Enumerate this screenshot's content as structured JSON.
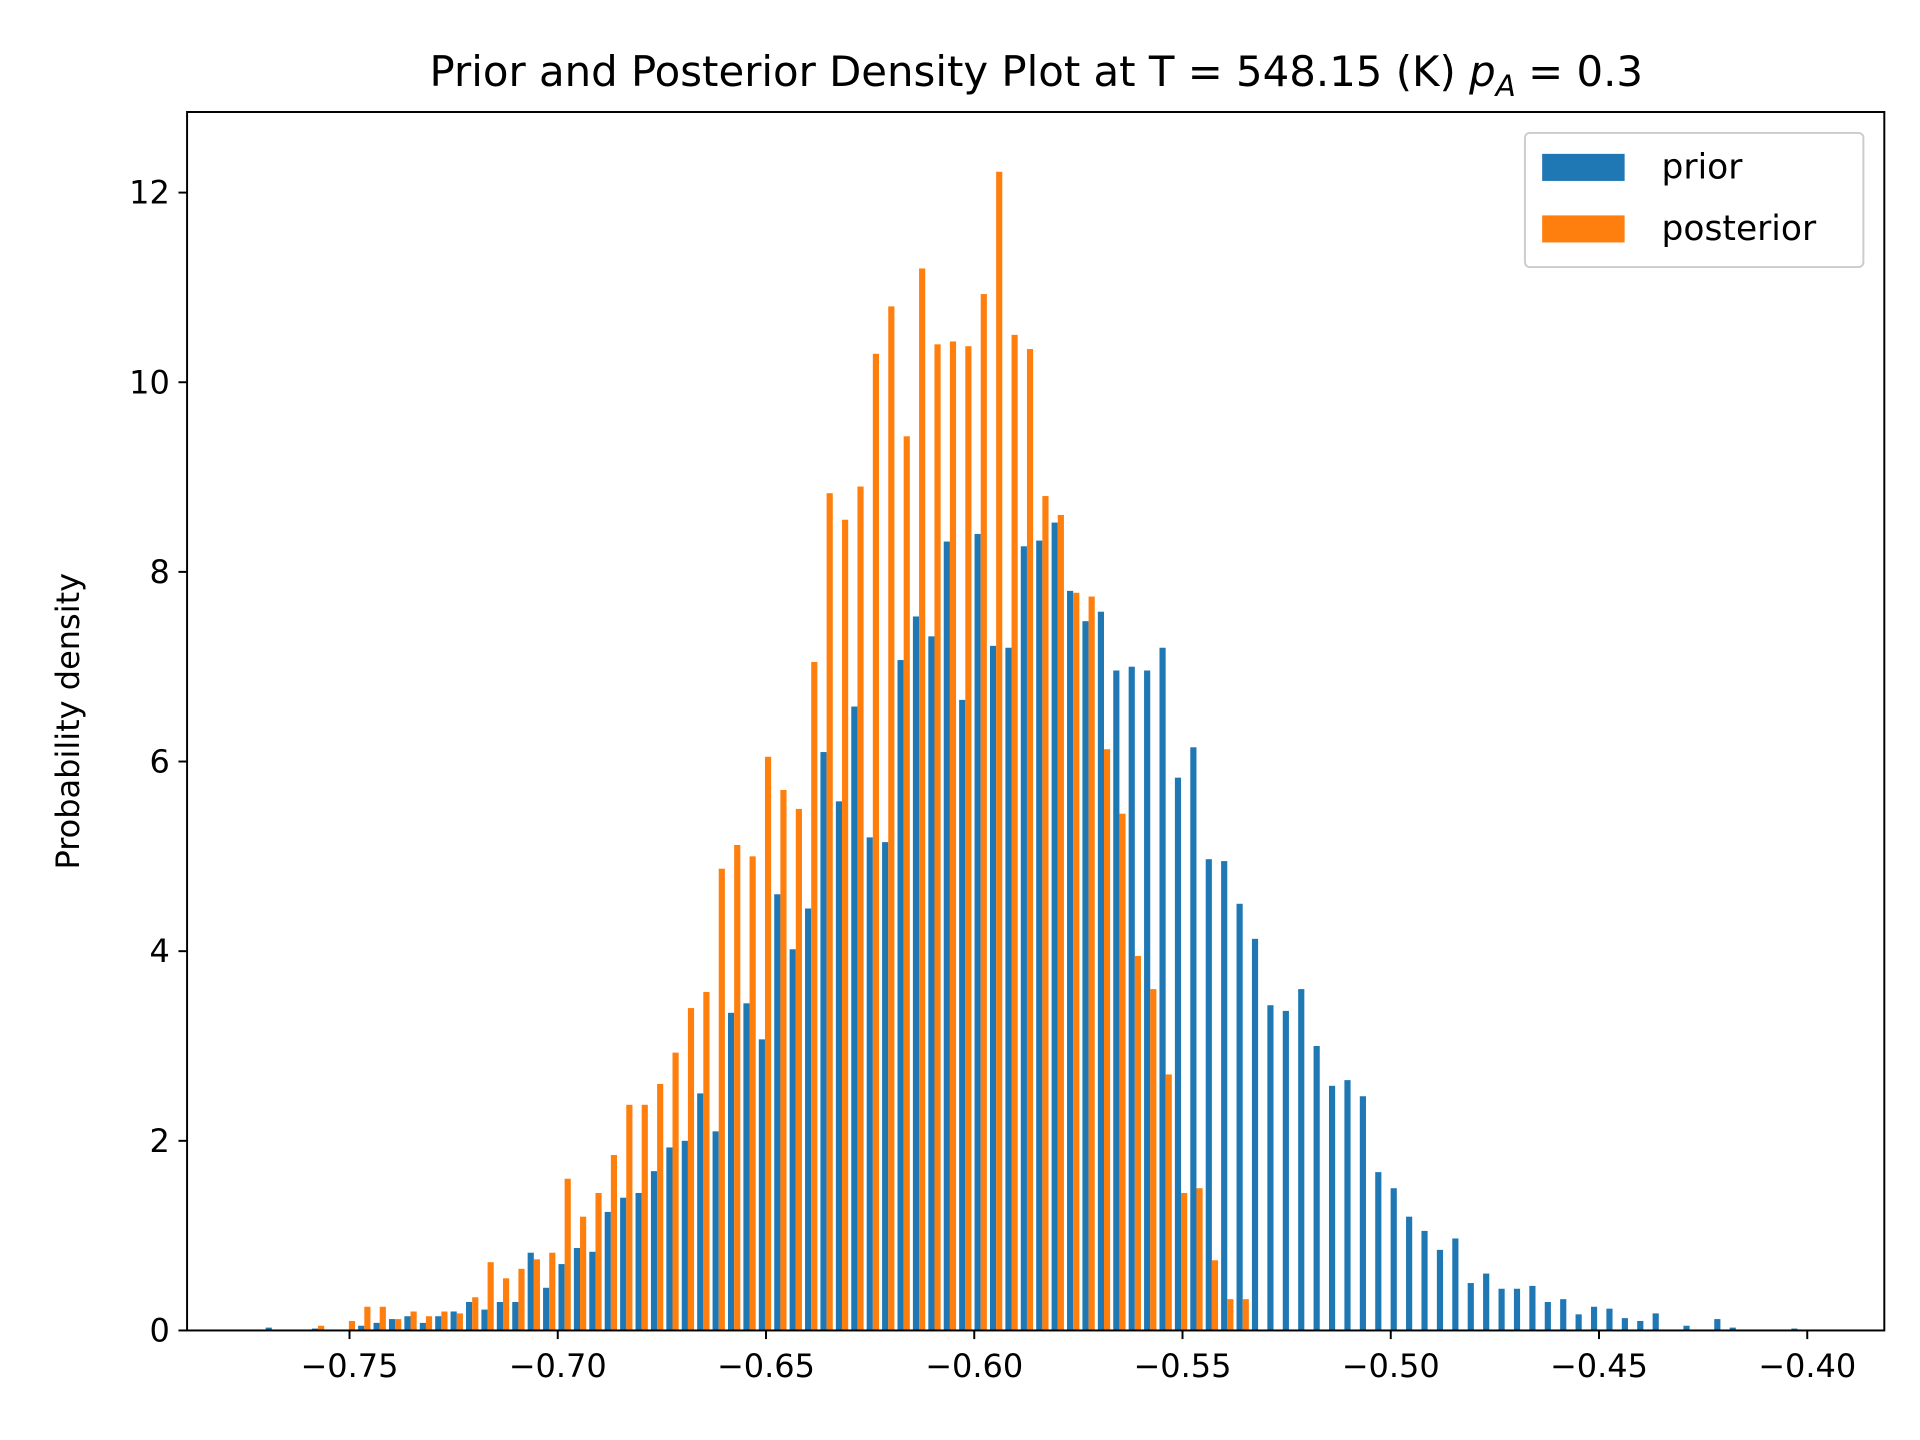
{
  "chart_data": {
    "type": "histogram",
    "title": "Prior and Posterior Density Plot at T = 548.15 (K)",
    "title_symbol": "p",
    "title_subscript": "A",
    "title_suffix": "= 0.3",
    "y_label": "Probability density",
    "bins": [
      -0.7705,
      -0.7668,
      -0.7631,
      -0.7594,
      -0.7557,
      -0.752,
      -0.7483,
      -0.7446,
      -0.7409,
      -0.7372,
      -0.7335,
      -0.7298,
      -0.7261,
      -0.7224,
      -0.7187,
      -0.715,
      -0.7113,
      -0.7076,
      -0.7039,
      -0.7002,
      -0.6965,
      -0.6928,
      -0.6891,
      -0.6854,
      -0.6817,
      -0.678,
      -0.6743,
      -0.6706,
      -0.6669,
      -0.6632,
      -0.6595,
      -0.6558,
      -0.6521,
      -0.6484,
      -0.6447,
      -0.641,
      -0.6373,
      -0.6336,
      -0.6299,
      -0.6262,
      -0.6225,
      -0.6188,
      -0.6151,
      -0.6114,
      -0.6077,
      -0.604,
      -0.6003,
      -0.5966,
      -0.5929,
      -0.5892,
      -0.5855,
      -0.5818,
      -0.5781,
      -0.5744,
      -0.5707,
      -0.567,
      -0.5633,
      -0.5596,
      -0.5559,
      -0.5522,
      -0.5485,
      -0.5448,
      -0.5411,
      -0.5374,
      -0.5337,
      -0.53,
      -0.5263,
      -0.5226,
      -0.5189,
      -0.5152,
      -0.5115,
      -0.5078,
      -0.5041,
      -0.5004,
      -0.4967,
      -0.493,
      -0.4893,
      -0.4856,
      -0.4819,
      -0.4782,
      -0.4745,
      -0.4708,
      -0.4671,
      -0.4634,
      -0.4597,
      -0.456,
      -0.4523,
      -0.4486,
      -0.4449,
      -0.4412,
      -0.4375,
      -0.4338,
      -0.4301,
      -0.4264,
      -0.4227,
      -0.419,
      -0.4153,
      -0.4116,
      -0.4079,
      -0.4042,
      -0.4005
    ],
    "series": [
      {
        "name": "prior",
        "color": "#1f77b4",
        "values": [
          0.03,
          0,
          0,
          0.02,
          0,
          0,
          0.05,
          0.08,
          0.12,
          0.15,
          0.08,
          0.15,
          0.2,
          0.3,
          0.22,
          0.3,
          0.3,
          0.82,
          0.45,
          0.7,
          0.87,
          0.83,
          1.25,
          1.4,
          1.45,
          1.68,
          1.93,
          2.0,
          2.5,
          2.1,
          3.35,
          3.45,
          3.07,
          4.6,
          4.02,
          4.45,
          6.1,
          5.58,
          6.58,
          5.2,
          5.15,
          7.07,
          7.53,
          7.32,
          8.32,
          6.65,
          8.4,
          7.22,
          7.2,
          8.27,
          8.33,
          8.52,
          7.8,
          7.48,
          7.58,
          6.96,
          7.0,
          6.96,
          7.2,
          5.83,
          6.15,
          4.97,
          4.95,
          4.5,
          4.13,
          3.43,
          3.37,
          3.6,
          3.0,
          2.58,
          2.64,
          2.47,
          1.67,
          1.5,
          1.2,
          1.05,
          0.85,
          0.97,
          0.5,
          0.6,
          0.44,
          0.44,
          0.47,
          0.3,
          0.33,
          0.17,
          0.25,
          0.23,
          0.13,
          0.1,
          0.18,
          0,
          0.05,
          0,
          0.12,
          0.03,
          0,
          0,
          0,
          0.02
        ]
      },
      {
        "name": "posterior",
        "color": "#ff7f0e",
        "values": [
          0,
          0,
          0,
          0.05,
          0,
          0.1,
          0.25,
          0.25,
          0.12,
          0.2,
          0.15,
          0.2,
          0.18,
          0.35,
          0.72,
          0.55,
          0.65,
          0.75,
          0.82,
          1.6,
          1.2,
          1.45,
          1.85,
          2.38,
          2.38,
          2.6,
          2.93,
          3.4,
          3.57,
          4.87,
          5.12,
          5.0,
          6.05,
          5.7,
          5.5,
          7.05,
          8.83,
          8.55,
          8.9,
          10.3,
          10.8,
          9.43,
          11.2,
          10.4,
          10.43,
          10.38,
          10.93,
          12.22,
          10.5,
          10.35,
          8.8,
          8.6,
          7.78,
          7.74,
          6.13,
          5.45,
          3.95,
          3.6,
          2.7,
          1.45,
          1.5,
          0.74,
          0.33,
          0.33,
          0,
          0,
          0,
          0,
          0,
          0,
          0,
          0,
          0,
          0,
          0,
          0,
          0,
          0,
          0,
          0,
          0,
          0,
          0,
          0,
          0,
          0,
          0,
          0,
          0,
          0,
          0,
          0,
          0,
          0,
          0,
          0,
          0,
          0,
          0,
          0
        ]
      }
    ],
    "xlim": [
      -0.789,
      -0.3815
    ],
    "ylim": [
      0,
      12.85
    ],
    "xticks": [
      {
        "value": -0.75,
        "label": "−0.75"
      },
      {
        "value": -0.7,
        "label": "−0.70"
      },
      {
        "value": -0.65,
        "label": "−0.65"
      },
      {
        "value": -0.6,
        "label": "−0.60"
      },
      {
        "value": -0.55,
        "label": "−0.55"
      },
      {
        "value": -0.5,
        "label": "−0.50"
      },
      {
        "value": -0.45,
        "label": "−0.45"
      },
      {
        "value": -0.4,
        "label": "−0.40"
      }
    ],
    "yticks": [
      0,
      2,
      4,
      6,
      8,
      10,
      12
    ],
    "legend": "upper right",
    "grid": false
  }
}
